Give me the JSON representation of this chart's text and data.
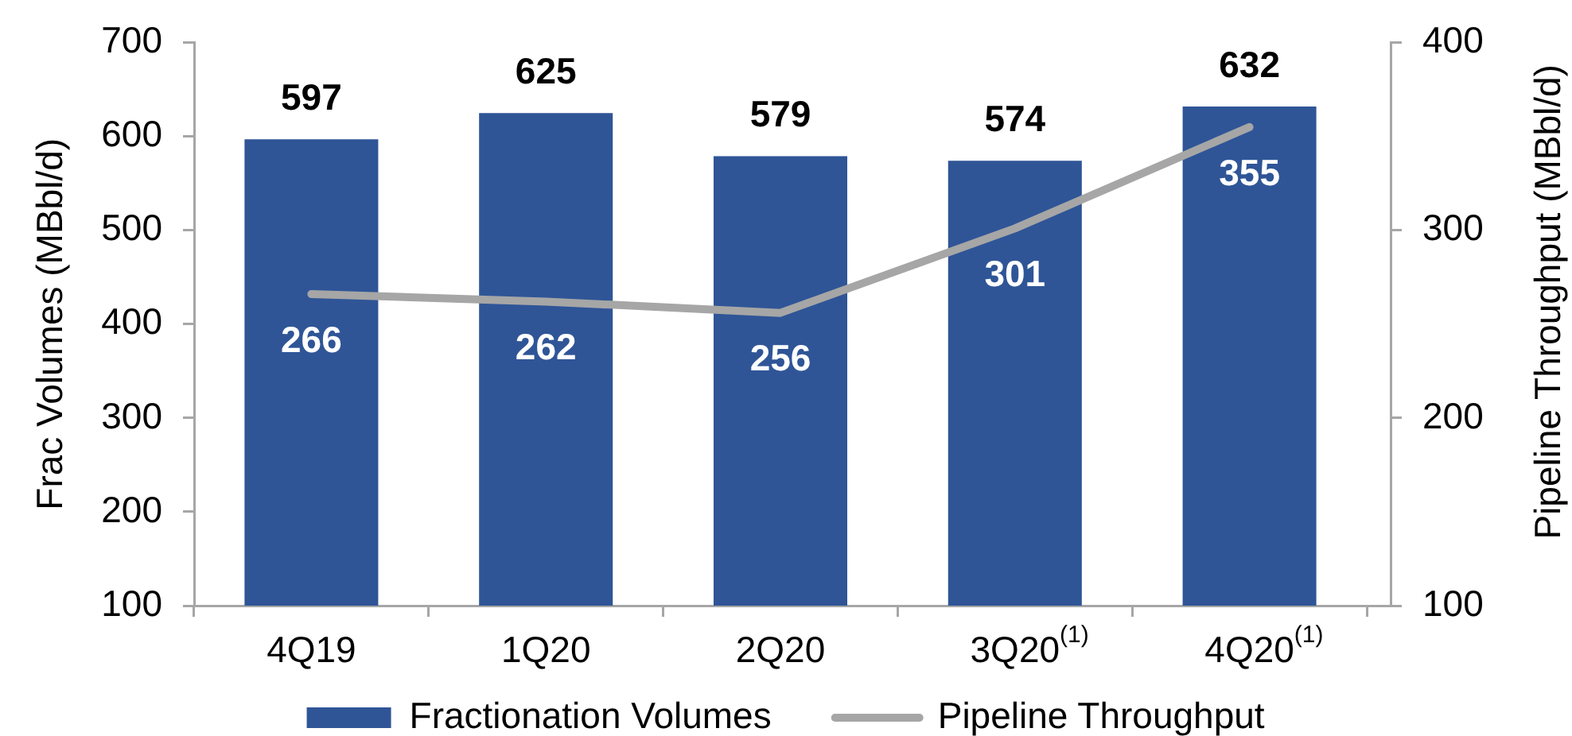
{
  "chart_data": {
    "type": "bar",
    "categories": [
      "4Q19",
      "1Q20",
      "2Q20",
      "3Q20$^{(1)}$",
      "4Q20$^{(1)}$"
    ],
    "ylabel": "Frac Volumes (MBbl/d)",
    "y2label": "Pipeline Throughput (MBbl/d)",
    "series": [
      {
        "name": "Fractionation Volumes",
        "color": "#2f5597",
        "values": [
          597,
          625,
          579,
          574,
          632
        ]
      },
      {
        "name": "Pipeline Throughput",
        "type": "line",
        "axis": "y2",
        "color": "#a6a6a6",
        "values": [
          266,
          262,
          256,
          301,
          355
        ]
      }
    ],
    "ylim": [
      100,
      700
    ],
    "yticks": [
      100,
      200,
      300,
      400,
      500,
      600,
      700
    ],
    "y2lim": [
      100,
      400
    ],
    "y2ticks": [
      100,
      200,
      300,
      400
    ],
    "data_labels": true,
    "legend": "bottom",
    "grid": false
  }
}
